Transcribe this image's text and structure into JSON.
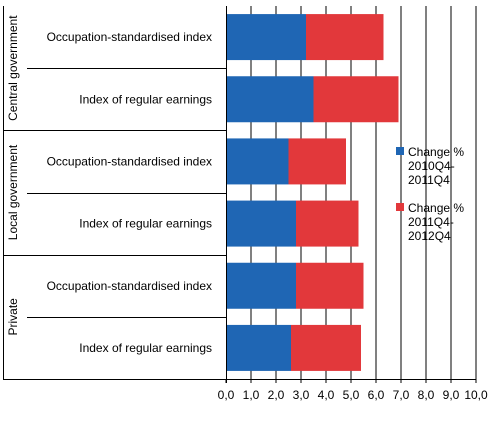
{
  "chart_data": {
    "type": "bar",
    "stacked": true,
    "orientation": "horizontal",
    "groups": [
      {
        "label": "Central government",
        "categories": [
          "Occupation-standardised index",
          "Index of regular earnings"
        ]
      },
      {
        "label": "Local government",
        "categories": [
          "Occupation-standardised index",
          "Index of regular earnings"
        ]
      },
      {
        "label": "Private",
        "categories": [
          "Occupation-standardised index",
          "Index of regular earnings"
        ]
      }
    ],
    "series": [
      {
        "name": "Change % 2010Q4-2011Q4",
        "legend_lines": [
          "Change %",
          "2010Q4-",
          "2011Q4"
        ],
        "color": "#1f66b4",
        "values": [
          3.2,
          3.5,
          2.5,
          2.8,
          2.8,
          2.6
        ]
      },
      {
        "name": "Change % 2011Q4-2012Q4",
        "legend_lines": [
          "Change %",
          "2011Q4-",
          "2012Q4"
        ],
        "color": "#e2383b",
        "values": [
          3.1,
          3.4,
          2.3,
          2.5,
          2.7,
          2.8
        ]
      }
    ],
    "xlim": [
      0,
      10
    ],
    "xticks": [
      "0,0",
      "1,0",
      "2,0",
      "3,0",
      "4,0",
      "5,0",
      "6,0",
      "7,0",
      "8,0",
      "9,0",
      "10,0"
    ],
    "grid": "vertical",
    "legend_position": "right"
  }
}
